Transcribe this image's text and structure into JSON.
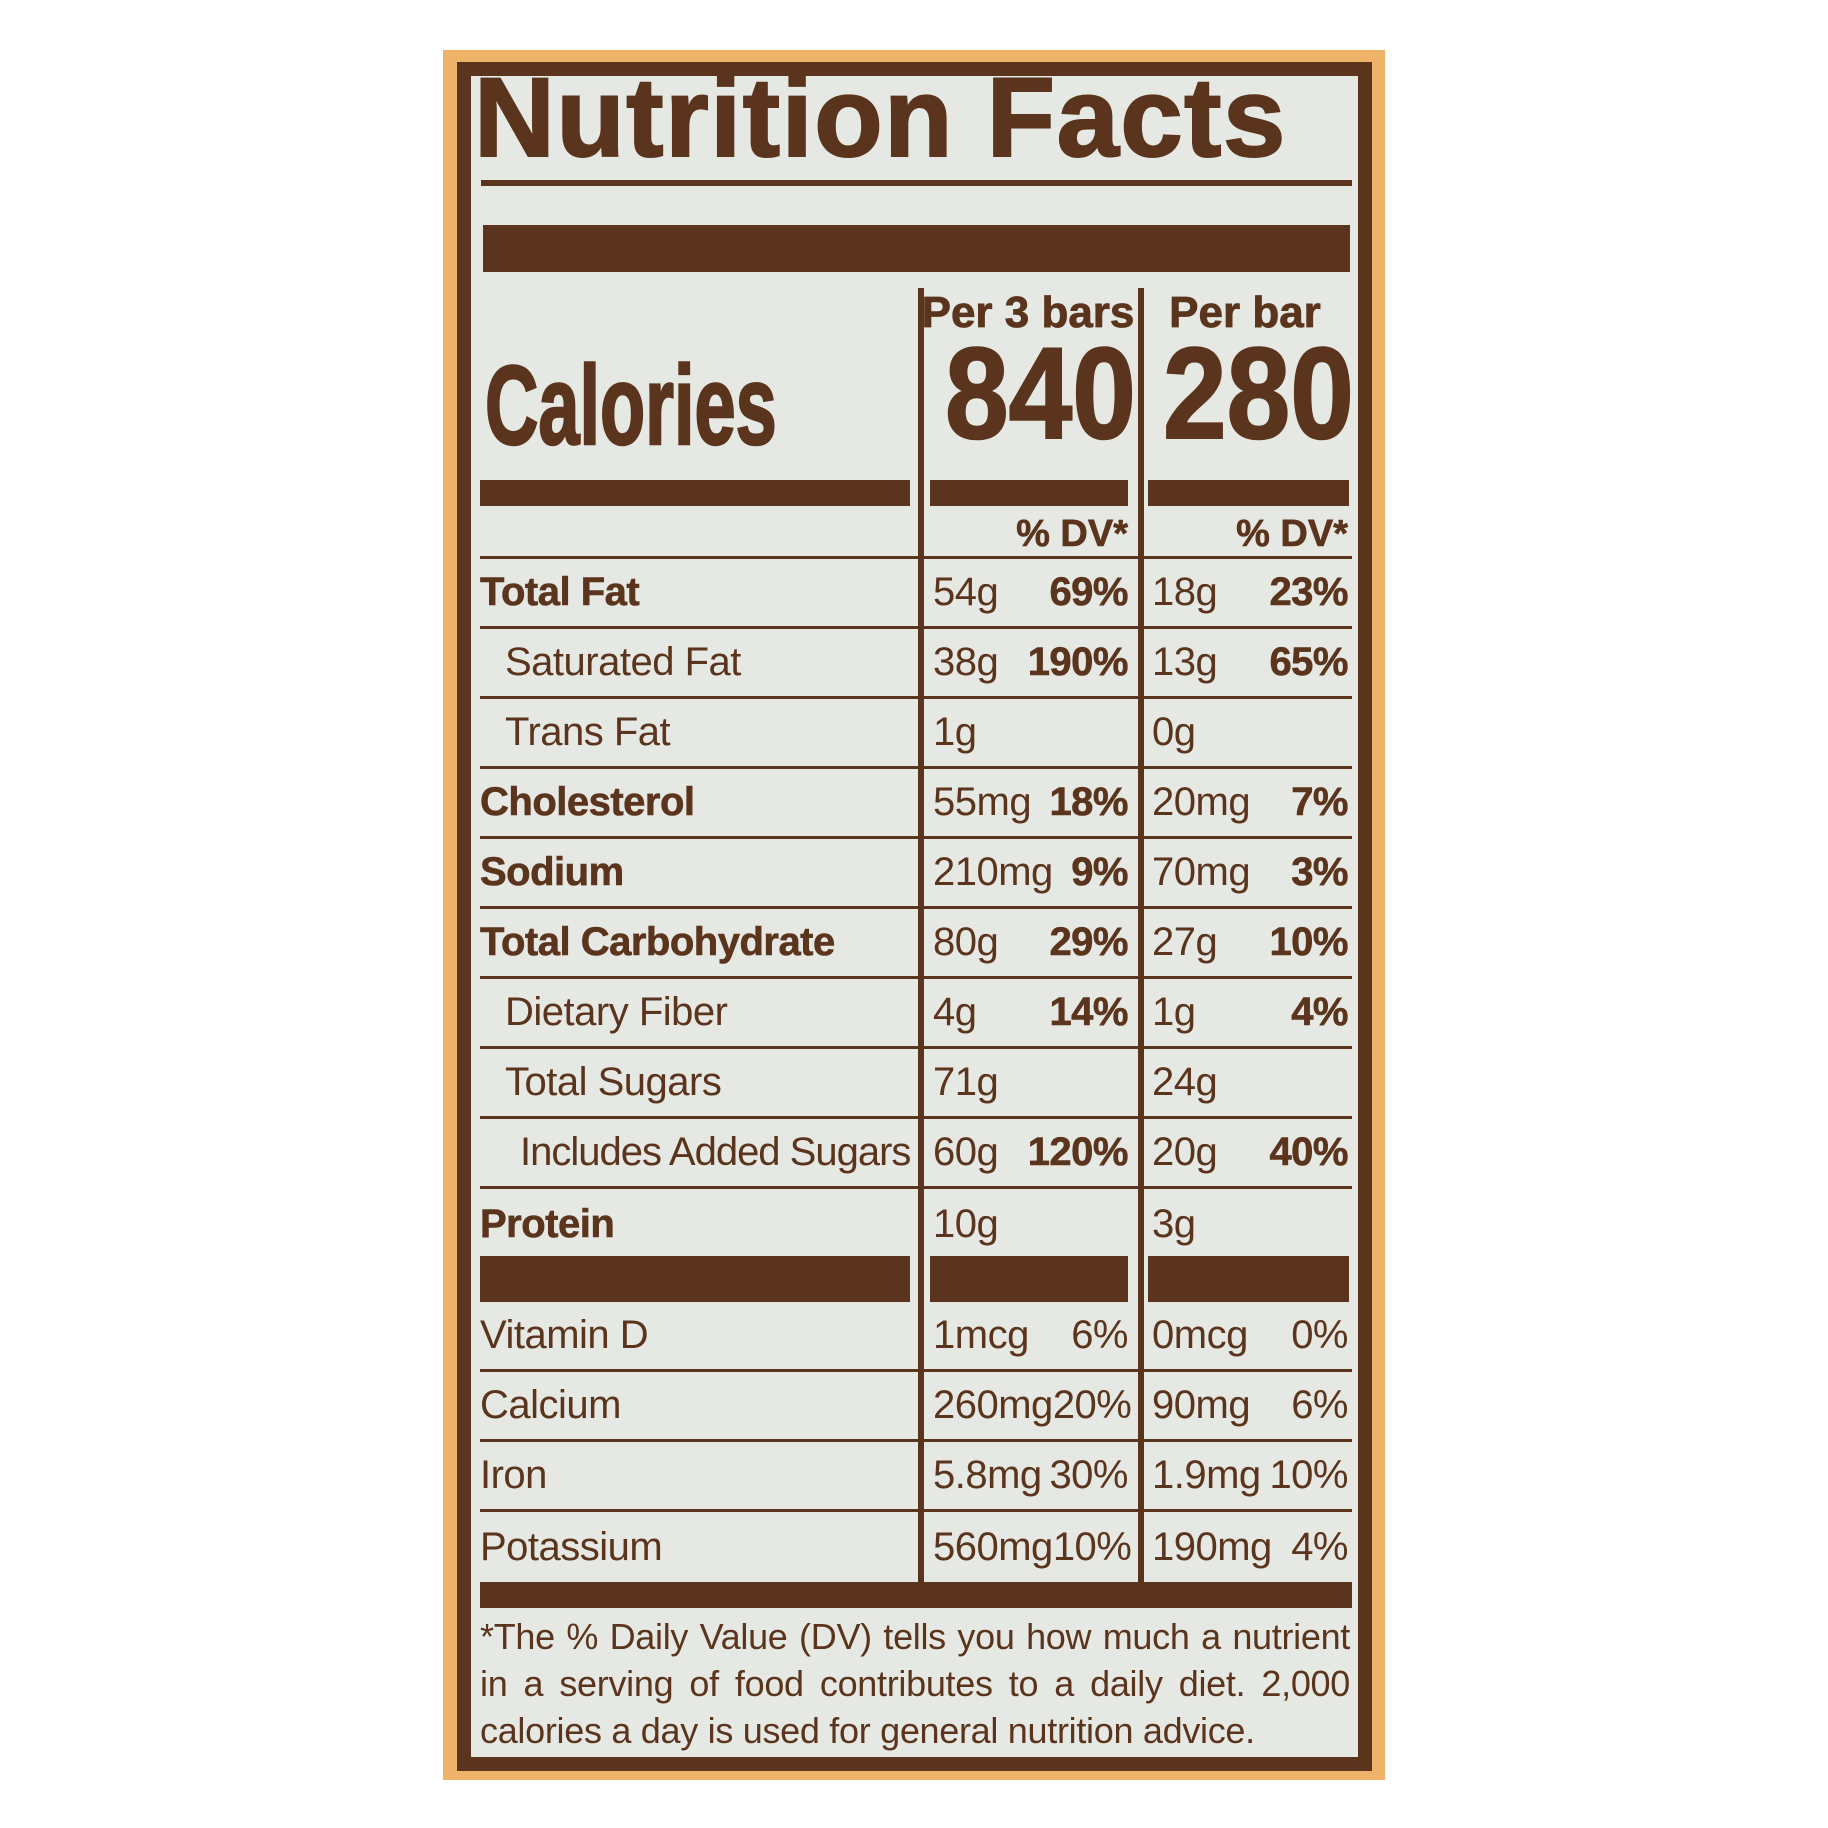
{
  "title": "Nutrition Facts",
  "calories": {
    "label": "Calories",
    "col1_header": "Per 3 bars",
    "col1_value": "840",
    "col2_header": "Per bar",
    "col2_value": "280"
  },
  "dv_header": "% DV*",
  "rows": [
    {
      "name": "Total Fat",
      "a1": "54g",
      "p1": "69%",
      "a2": "18g",
      "p2": "23%"
    },
    {
      "name": "Saturated Fat",
      "a1": "38g",
      "p1": "190%",
      "a2": "13g",
      "p2": "65%"
    },
    {
      "name": "Trans Fat",
      "a1": "1g",
      "p1": "",
      "a2": "0g",
      "p2": ""
    },
    {
      "name": "Cholesterol",
      "a1": "55mg",
      "p1": "18%",
      "a2": "20mg",
      "p2": "7%"
    },
    {
      "name": "Sodium",
      "a1": "210mg",
      "p1": "9%",
      "a2": "70mg",
      "p2": "3%"
    },
    {
      "name": "Total Carbohydrate",
      "a1": "80g",
      "p1": "29%",
      "a2": "27g",
      "p2": "10%"
    },
    {
      "name": "Dietary Fiber",
      "a1": "4g",
      "p1": "14%",
      "a2": "1g",
      "p2": "4%"
    },
    {
      "name": "Total Sugars",
      "a1": "71g",
      "p1": "",
      "a2": "24g",
      "p2": ""
    },
    {
      "name": "Includes Added Sugars",
      "a1": "60g",
      "p1": "120%",
      "a2": "20g",
      "p2": "40%"
    },
    {
      "name": "Protein",
      "a1": "10g",
      "p1": "",
      "a2": "3g",
      "p2": ""
    }
  ],
  "vitamins": [
    {
      "name": "Vitamin D",
      "a1": "1mcg",
      "p1": "6%",
      "a2": "0mcg",
      "p2": "0%"
    },
    {
      "name": "Calcium",
      "a1": "260mg",
      "p1": "20%",
      "a2": "90mg",
      "p2": "6%"
    },
    {
      "name": "Iron",
      "a1": "5.8mg",
      "p1": "30%",
      "a2": "1.9mg",
      "p2": "10%"
    },
    {
      "name": "Potassium",
      "a1": "560mg",
      "p1": "10%",
      "a2": "190mg",
      "p2": "4%"
    }
  ],
  "footnote": "*The % Daily Value (DV) tells you how much a nutrient in a serving of food contributes to a daily diet. 2,000 calories a day is used for general nutrition advice.",
  "colors": {
    "label_brown": "#5b341d",
    "border_tan": "#efb269",
    "panel_background": "#e6e9e3"
  }
}
